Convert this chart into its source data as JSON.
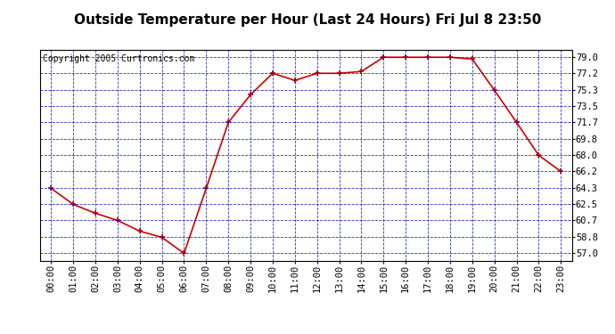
{
  "title": "Outside Temperature per Hour (Last 24 Hours) Fri Jul 8 23:50",
  "copyright": "Copyright 2005 Curtronics.com",
  "hours": [
    0,
    1,
    2,
    3,
    4,
    5,
    6,
    7,
    8,
    9,
    10,
    11,
    12,
    13,
    14,
    15,
    16,
    17,
    18,
    19,
    20,
    21,
    22,
    23
  ],
  "temps": [
    64.3,
    62.5,
    61.5,
    60.7,
    59.5,
    58.8,
    57.0,
    64.3,
    71.7,
    74.8,
    77.2,
    76.4,
    77.2,
    77.2,
    77.4,
    79.0,
    79.0,
    79.0,
    79.0,
    78.8,
    75.3,
    71.7,
    68.0,
    66.2
  ],
  "xlabels": [
    "00:00",
    "01:00",
    "02:00",
    "03:00",
    "04:00",
    "05:00",
    "06:00",
    "07:00",
    "08:00",
    "09:00",
    "10:00",
    "11:00",
    "12:00",
    "13:00",
    "14:00",
    "15:00",
    "16:00",
    "17:00",
    "18:00",
    "19:00",
    "20:00",
    "21:00",
    "22:00",
    "23:00"
  ],
  "yticks": [
    57.0,
    58.8,
    60.7,
    62.5,
    64.3,
    66.2,
    68.0,
    69.8,
    71.7,
    73.5,
    75.3,
    77.2,
    79.0
  ],
  "ylim": [
    56.2,
    79.8
  ],
  "xlim": [
    -0.5,
    23.5
  ],
  "line_color": "#cc0000",
  "marker_color": "#cc0000",
  "bg_color": "#ffffff",
  "plot_bg_color": "#ffffff",
  "grid_color": "#0000bb",
  "title_fontsize": 11,
  "copyright_fontsize": 7,
  "tick_fontsize": 7.5,
  "title_color": "#000000",
  "title_bg": "#dddddd"
}
